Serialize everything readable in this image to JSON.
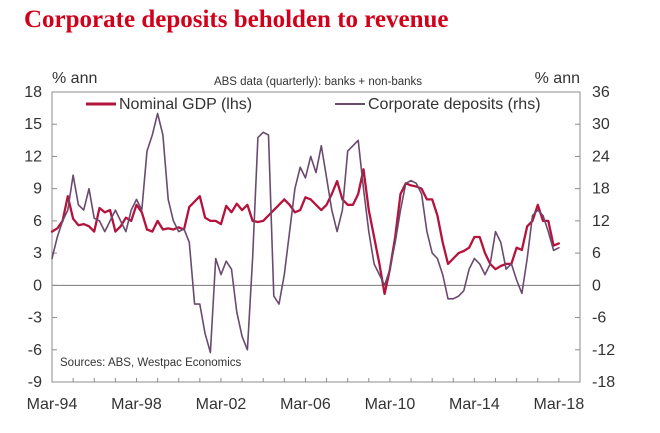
{
  "chart_data": {
    "type": "line",
    "title": "Corporate deposits beholden to revenue",
    "subtitle": "ABS data (quarterly): banks + non-banks",
    "source": "Sources: ABS, Westpac Economics",
    "left_unit": "% ann",
    "right_unit": "% ann",
    "x_tick_labels": [
      "Mar-94",
      "Mar-98",
      "Mar-02",
      "Mar-06",
      "Mar-10",
      "Mar-14",
      "Mar-18"
    ],
    "x_ticks": [
      1994,
      1998,
      2002,
      2006,
      2010,
      2014,
      2018
    ],
    "xlim": [
      1994,
      2019
    ],
    "ylim_left": [
      -9,
      18
    ],
    "ylim_right": [
      -18,
      36
    ],
    "y_ticks_left": [
      18,
      15,
      12,
      9,
      6,
      3,
      0,
      -3,
      -6,
      -9
    ],
    "y_ticks_right": [
      36,
      30,
      24,
      18,
      12,
      6,
      0,
      -6,
      -12,
      -18
    ],
    "zero_line": true,
    "series": [
      {
        "name": "Nominal GDP (lhs)",
        "axis": "left",
        "color": "#b5133c",
        "points": [
          [
            1994.0,
            5.0
          ],
          [
            1994.25,
            5.3
          ],
          [
            1994.5,
            6.0
          ],
          [
            1994.75,
            8.3
          ],
          [
            1995.0,
            6.2
          ],
          [
            1995.25,
            5.6
          ],
          [
            1995.5,
            5.7
          ],
          [
            1995.75,
            5.5
          ],
          [
            1996.0,
            5.0
          ],
          [
            1996.25,
            7.2
          ],
          [
            1996.5,
            6.8
          ],
          [
            1996.75,
            7.0
          ],
          [
            1997.0,
            5.0
          ],
          [
            1997.25,
            5.5
          ],
          [
            1997.5,
            6.3
          ],
          [
            1997.75,
            6.0
          ],
          [
            1998.0,
            7.5
          ],
          [
            1998.25,
            6.8
          ],
          [
            1998.5,
            5.2
          ],
          [
            1998.75,
            5.0
          ],
          [
            1999.0,
            6.0
          ],
          [
            1999.25,
            5.2
          ],
          [
            1999.5,
            5.3
          ],
          [
            1999.75,
            5.2
          ],
          [
            2000.0,
            5.4
          ],
          [
            2000.25,
            5.2
          ],
          [
            2000.5,
            7.3
          ],
          [
            2000.75,
            7.8
          ],
          [
            2001.0,
            8.3
          ],
          [
            2001.25,
            6.3
          ],
          [
            2001.5,
            6.0
          ],
          [
            2001.75,
            6.0
          ],
          [
            2002.0,
            5.7
          ],
          [
            2002.25,
            7.4
          ],
          [
            2002.5,
            6.8
          ],
          [
            2002.75,
            7.6
          ],
          [
            2003.0,
            7.0
          ],
          [
            2003.25,
            7.5
          ],
          [
            2003.5,
            6.0
          ],
          [
            2003.75,
            5.9
          ],
          [
            2004.0,
            6.0
          ],
          [
            2004.25,
            6.5
          ],
          [
            2004.5,
            7.0
          ],
          [
            2004.75,
            7.5
          ],
          [
            2005.0,
            8.0
          ],
          [
            2005.25,
            7.5
          ],
          [
            2005.5,
            6.8
          ],
          [
            2005.75,
            7.0
          ],
          [
            2006.0,
            8.2
          ],
          [
            2006.25,
            8.0
          ],
          [
            2006.5,
            7.5
          ],
          [
            2006.75,
            7.0
          ],
          [
            2007.0,
            7.5
          ],
          [
            2007.25,
            8.5
          ],
          [
            2007.5,
            9.7
          ],
          [
            2007.75,
            8.0
          ],
          [
            2008.0,
            7.5
          ],
          [
            2008.25,
            7.5
          ],
          [
            2008.5,
            8.5
          ],
          [
            2008.75,
            10.8
          ],
          [
            2009.0,
            7.0
          ],
          [
            2009.25,
            4.5
          ],
          [
            2009.5,
            2.0
          ],
          [
            2009.75,
            -0.8
          ],
          [
            2010.0,
            1.5
          ],
          [
            2010.25,
            4.5
          ],
          [
            2010.5,
            8.5
          ],
          [
            2010.75,
            9.5
          ],
          [
            2011.0,
            9.3
          ],
          [
            2011.25,
            9.2
          ],
          [
            2011.5,
            9.0
          ],
          [
            2011.75,
            8.0
          ],
          [
            2012.0,
            8.0
          ],
          [
            2012.25,
            6.5
          ],
          [
            2012.5,
            4.0
          ],
          [
            2012.75,
            2.0
          ],
          [
            2013.0,
            2.5
          ],
          [
            2013.25,
            3.0
          ],
          [
            2013.5,
            3.2
          ],
          [
            2013.75,
            3.5
          ],
          [
            2014.0,
            4.5
          ],
          [
            2014.25,
            4.5
          ],
          [
            2014.5,
            3.0
          ],
          [
            2014.75,
            2.0
          ],
          [
            2015.0,
            1.5
          ],
          [
            2015.25,
            1.8
          ],
          [
            2015.5,
            2.0
          ],
          [
            2015.75,
            2.0
          ],
          [
            2016.0,
            3.5
          ],
          [
            2016.25,
            3.3
          ],
          [
            2016.5,
            5.5
          ],
          [
            2016.75,
            6.0
          ],
          [
            2017.0,
            7.5
          ],
          [
            2017.25,
            6.0
          ],
          [
            2017.5,
            6.0
          ],
          [
            2017.75,
            3.7
          ],
          [
            2018.0,
            3.9
          ]
        ]
      },
      {
        "name": "Corporate deposits (rhs)",
        "axis": "right",
        "color": "#6a4a6f",
        "points": [
          [
            1994.0,
            5.0
          ],
          [
            1994.25,
            9.0
          ],
          [
            1994.5,
            12.0
          ],
          [
            1994.75,
            14.0
          ],
          [
            1995.0,
            20.5
          ],
          [
            1995.25,
            15.0
          ],
          [
            1995.5,
            14.0
          ],
          [
            1995.75,
            18.0
          ],
          [
            1996.0,
            12.5
          ],
          [
            1996.25,
            12.0
          ],
          [
            1996.5,
            10.0
          ],
          [
            1996.75,
            12.0
          ],
          [
            1997.0,
            14.0
          ],
          [
            1997.25,
            12.0
          ],
          [
            1997.5,
            10.0
          ],
          [
            1997.75,
            14.0
          ],
          [
            1998.0,
            16.0
          ],
          [
            1998.25,
            14.0
          ],
          [
            1998.5,
            25.0
          ],
          [
            1998.75,
            28.0
          ],
          [
            1999.0,
            32.0
          ],
          [
            1999.25,
            28.0
          ],
          [
            1999.5,
            16.0
          ],
          [
            1999.75,
            12.0
          ],
          [
            2000.0,
            10.0
          ],
          [
            2000.25,
            10.5
          ],
          [
            2000.5,
            8.0
          ],
          [
            2000.75,
            -3.5
          ],
          [
            2001.0,
            -3.5
          ],
          [
            2001.25,
            -9.0
          ],
          [
            2001.5,
            -12.5
          ],
          [
            2001.75,
            5.0
          ],
          [
            2002.0,
            2.0
          ],
          [
            2002.25,
            4.5
          ],
          [
            2002.5,
            3.0
          ],
          [
            2002.75,
            -5.0
          ],
          [
            2003.0,
            -9.5
          ],
          [
            2003.25,
            -12.0
          ],
          [
            2003.5,
            5.0
          ],
          [
            2003.75,
            27.5
          ],
          [
            2004.0,
            28.5
          ],
          [
            2004.25,
            28.0
          ],
          [
            2004.5,
            -2.0
          ],
          [
            2004.75,
            -3.5
          ],
          [
            2005.0,
            2.0
          ],
          [
            2005.25,
            10.0
          ],
          [
            2005.5,
            18.0
          ],
          [
            2005.75,
            22.0
          ],
          [
            2006.0,
            20.0
          ],
          [
            2006.25,
            24.0
          ],
          [
            2006.5,
            21.0
          ],
          [
            2006.75,
            26.0
          ],
          [
            2007.0,
            20.0
          ],
          [
            2007.25,
            14.0
          ],
          [
            2007.5,
            10.0
          ],
          [
            2007.75,
            14.0
          ],
          [
            2008.0,
            25.0
          ],
          [
            2008.25,
            26.0
          ],
          [
            2008.5,
            27.0
          ],
          [
            2008.75,
            18.0
          ],
          [
            2009.0,
            10.0
          ],
          [
            2009.25,
            4.0
          ],
          [
            2009.5,
            2.0
          ],
          [
            2009.75,
            0.0
          ],
          [
            2010.0,
            3.0
          ],
          [
            2010.25,
            8.0
          ],
          [
            2010.5,
            14.0
          ],
          [
            2010.75,
            19.0
          ],
          [
            2011.0,
            19.5
          ],
          [
            2011.25,
            19.0
          ],
          [
            2011.5,
            17.0
          ],
          [
            2011.75,
            10.0
          ],
          [
            2012.0,
            6.0
          ],
          [
            2012.25,
            5.0
          ],
          [
            2012.5,
            2.0
          ],
          [
            2012.75,
            -2.5
          ],
          [
            2013.0,
            -2.5
          ],
          [
            2013.25,
            -2.0
          ],
          [
            2013.5,
            -1.0
          ],
          [
            2013.75,
            3.0
          ],
          [
            2014.0,
            5.0
          ],
          [
            2014.25,
            4.0
          ],
          [
            2014.5,
            2.0
          ],
          [
            2014.75,
            4.0
          ],
          [
            2015.0,
            10.0
          ],
          [
            2015.25,
            8.0
          ],
          [
            2015.5,
            3.0
          ],
          [
            2015.75,
            4.0
          ],
          [
            2016.0,
            1.0
          ],
          [
            2016.25,
            -1.5
          ],
          [
            2016.5,
            5.0
          ],
          [
            2016.75,
            13.0
          ],
          [
            2017.0,
            14.0
          ],
          [
            2017.25,
            13.0
          ],
          [
            2017.5,
            10.0
          ],
          [
            2017.75,
            6.5
          ],
          [
            2018.0,
            7.0
          ]
        ]
      }
    ]
  }
}
